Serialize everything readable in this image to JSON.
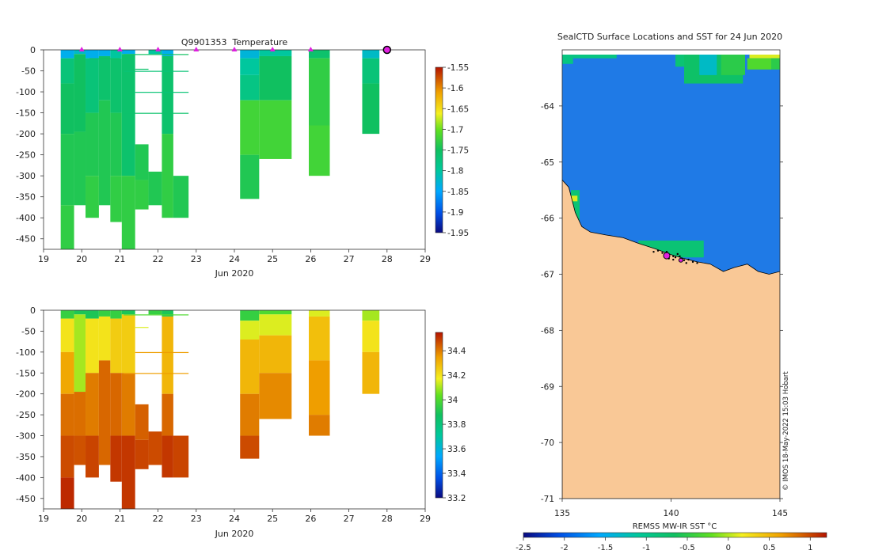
{
  "chart_data": [
    {
      "id": "temperature-section",
      "type": "heatmap",
      "title": "Q9901353  Temperature",
      "xlabel": "Jun 2020",
      "ylabel": "",
      "xlim": [
        19,
        29
      ],
      "ylim": [
        -475,
        0
      ],
      "x_ticks": [
        19,
        20,
        21,
        22,
        23,
        24,
        25,
        26,
        27,
        28,
        29
      ],
      "y_ticks": [
        0,
        -50,
        -100,
        -150,
        -200,
        -250,
        -300,
        -350,
        -400,
        -450
      ],
      "colorbar": {
        "min": -1.95,
        "max": -1.55,
        "ticks": [
          -1.55,
          -1.6,
          -1.65,
          -1.7,
          -1.75,
          -1.8,
          -1.85,
          -1.9,
          -1.95
        ]
      },
      "profile_markers_x": [
        20,
        21,
        22,
        23,
        24,
        25,
        26
      ],
      "current_marker": {
        "x": 28,
        "depth": 0
      },
      "profiles": [
        {
          "x0": 19.45,
          "x1": 19.8,
          "segments": [
            [
              0,
              20,
              -1.84
            ],
            [
              20,
              80,
              -1.77
            ],
            [
              80,
              200,
              -1.75
            ],
            [
              200,
              370,
              -1.74
            ],
            [
              370,
              475,
              -1.73
            ]
          ]
        },
        {
          "x0": 19.8,
          "x1": 20.1,
          "segments": [
            [
              0,
              10,
              -1.82
            ],
            [
              10,
              195,
              -1.75
            ]
          ]
        },
        {
          "x0": 19.8,
          "x1": 20.1,
          "segments": [
            [
              195,
              370,
              -1.74
            ]
          ]
        },
        {
          "x0": 20.1,
          "x1": 20.45,
          "segments": [
            [
              0,
              20,
              -1.84
            ],
            [
              20,
              150,
              -1.77
            ],
            [
              150,
              300,
              -1.74
            ],
            [
              300,
              400,
              -1.73
            ]
          ]
        },
        {
          "x0": 20.45,
          "x1": 20.75,
          "segments": [
            [
              0,
              15,
              -1.84
            ],
            [
              15,
              120,
              -1.76
            ],
            [
              120,
              370,
              -1.74
            ]
          ]
        },
        {
          "x0": 20.75,
          "x1": 21.05,
          "segments": [
            [
              0,
              20,
              -1.8
            ],
            [
              20,
              150,
              -1.76
            ],
            [
              150,
              300,
              -1.74
            ],
            [
              300,
              410,
              -1.73
            ]
          ]
        },
        {
          "x0": 21.05,
          "x1": 21.4,
          "segments": [
            [
              0,
              10,
              -1.84
            ],
            [
              10,
              300,
              -1.76
            ],
            [
              300,
              475,
              -1.73
            ]
          ]
        },
        {
          "x0": 21.4,
          "x1": 21.75,
          "segments": [
            [
              225,
              310,
              -1.74
            ],
            [
              310,
              380,
              -1.73
            ]
          ]
        },
        {
          "x0": 21.75,
          "x1": 22.1,
          "segments": [
            [
              0,
              10,
              -1.8
            ],
            [
              290,
              370,
              -1.74
            ]
          ]
        },
        {
          "x0": 22.1,
          "x1": 22.4,
          "segments": [
            [
              0,
              15,
              -1.84
            ],
            [
              15,
              200,
              -1.76
            ],
            [
              200,
              400,
              -1.73
            ]
          ]
        },
        {
          "x0": 22.4,
          "x1": 22.8,
          "segments": [
            [
              300,
              400,
              -1.74
            ]
          ]
        },
        {
          "x0": 24.15,
          "x1": 24.65,
          "segments": [
            [
              0,
              20,
              -1.83
            ],
            [
              20,
              60,
              -1.8
            ],
            [
              60,
              120,
              -1.78
            ],
            [
              120,
              250,
              -1.72
            ],
            [
              250,
              355,
              -1.74
            ]
          ]
        },
        {
          "x0": 24.65,
          "x1": 25.5,
          "segments": [
            [
              0,
              15,
              -1.8
            ],
            [
              15,
              120,
              -1.75
            ],
            [
              120,
              260,
              -1.72
            ]
          ]
        },
        {
          "x0": 25.95,
          "x1": 26.5,
          "segments": [
            [
              0,
              20,
              -1.76
            ],
            [
              20,
              180,
              -1.73
            ],
            [
              180,
              300,
              -1.72
            ]
          ]
        },
        {
          "x0": 27.35,
          "x1": 27.8,
          "segments": [
            [
              0,
              20,
              -1.82
            ],
            [
              20,
              80,
              -1.77
            ],
            [
              80,
              200,
              -1.75
            ]
          ]
        }
      ],
      "thin_lines": [
        {
          "x0": 20.2,
          "x1": 21.0,
          "depth": 20,
          "value": -1.75
        },
        {
          "x0": 21.1,
          "x1": 22.8,
          "depth": 10,
          "value": -1.75
        },
        {
          "x0": 21.1,
          "x1": 22.8,
          "depth": 50,
          "value": -1.77
        },
        {
          "x0": 21.4,
          "x1": 21.75,
          "depth": 45,
          "value": -1.76
        },
        {
          "x0": 21.4,
          "x1": 22.8,
          "depth": 100,
          "value": -1.77
        },
        {
          "x0": 21.1,
          "x1": 22.8,
          "depth": 150,
          "value": -1.76
        }
      ]
    },
    {
      "id": "salinity-section",
      "type": "heatmap",
      "title": "",
      "xlabel": "Jun 2020",
      "ylabel": "",
      "xlim": [
        19,
        29
      ],
      "ylim": [
        -475,
        0
      ],
      "x_ticks": [
        19,
        20,
        21,
        22,
        23,
        24,
        25,
        26,
        27,
        28,
        29
      ],
      "y_ticks": [
        0,
        -50,
        -100,
        -150,
        -200,
        -250,
        -300,
        -350,
        -400,
        -450
      ],
      "colorbar": {
        "min": 33.2,
        "max": 34.55,
        "ticks": [
          34.4,
          34.2,
          34,
          33.8,
          33.6,
          33.4,
          33.2
        ]
      },
      "profiles": [
        {
          "x0": 19.45,
          "x1": 19.8,
          "segments": [
            [
              0,
              20,
              33.95
            ],
            [
              20,
              100,
              34.2
            ],
            [
              100,
              200,
              34.33
            ],
            [
              200,
              300,
              34.42
            ],
            [
              300,
              400,
              34.47
            ],
            [
              400,
              475,
              34.52
            ]
          ]
        },
        {
          "x0": 19.8,
          "x1": 20.1,
          "segments": [
            [
              0,
              10,
              33.9
            ],
            [
              10,
              195,
              34.1
            ]
          ]
        },
        {
          "x0": 19.8,
          "x1": 20.1,
          "segments": [
            [
              195,
              300,
              34.42
            ],
            [
              300,
              370,
              34.46
            ]
          ]
        },
        {
          "x0": 20.1,
          "x1": 20.45,
          "segments": [
            [
              0,
              20,
              33.9
            ],
            [
              20,
              150,
              34.2
            ],
            [
              150,
              300,
              34.4
            ],
            [
              300,
              400,
              34.48
            ]
          ]
        },
        {
          "x0": 20.45,
          "x1": 20.75,
          "segments": [
            [
              0,
              15,
              33.95
            ],
            [
              15,
              120,
              34.2
            ],
            [
              120,
              370,
              34.43
            ]
          ]
        },
        {
          "x0": 20.75,
          "x1": 21.05,
          "segments": [
            [
              0,
              20,
              33.95
            ],
            [
              20,
              150,
              34.25
            ],
            [
              150,
              300,
              34.43
            ],
            [
              300,
              410,
              34.5
            ]
          ]
        },
        {
          "x0": 21.05,
          "x1": 21.4,
          "segments": [
            [
              0,
              10,
              33.9
            ],
            [
              10,
              150,
              34.25
            ],
            [
              150,
              300,
              34.4
            ],
            [
              300,
              475,
              34.5
            ]
          ]
        },
        {
          "x0": 21.4,
          "x1": 21.75,
          "segments": [
            [
              225,
              310,
              34.44
            ],
            [
              310,
              380,
              34.48
            ]
          ]
        },
        {
          "x0": 21.75,
          "x1": 22.1,
          "segments": [
            [
              0,
              10,
              33.95
            ],
            [
              290,
              370,
              34.47
            ]
          ]
        },
        {
          "x0": 22.1,
          "x1": 22.4,
          "segments": [
            [
              0,
              15,
              33.9
            ],
            [
              15,
              200,
              34.3
            ],
            [
              200,
              300,
              34.43
            ],
            [
              300,
              400,
              34.5
            ]
          ]
        },
        {
          "x0": 22.4,
          "x1": 22.8,
          "segments": [
            [
              300,
              400,
              34.48
            ]
          ]
        },
        {
          "x0": 24.15,
          "x1": 24.65,
          "segments": [
            [
              0,
              25,
              33.95
            ],
            [
              25,
              70,
              34.15
            ],
            [
              70,
              200,
              34.3
            ],
            [
              200,
              300,
              34.4
            ],
            [
              300,
              355,
              34.47
            ]
          ]
        },
        {
          "x0": 24.65,
          "x1": 25.5,
          "segments": [
            [
              0,
              10,
              34.0
            ],
            [
              10,
              60,
              34.15
            ],
            [
              60,
              150,
              34.3
            ],
            [
              150,
              260,
              34.38
            ]
          ]
        },
        {
          "x0": 25.95,
          "x1": 26.5,
          "segments": [
            [
              0,
              15,
              34.15
            ],
            [
              15,
              120,
              34.28
            ],
            [
              120,
              250,
              34.35
            ],
            [
              250,
              300,
              34.4
            ]
          ]
        },
        {
          "x0": 27.35,
          "x1": 27.8,
          "segments": [
            [
              0,
              25,
              34.1
            ],
            [
              25,
              100,
              34.2
            ],
            [
              100,
              200,
              34.3
            ]
          ]
        }
      ],
      "thin_lines": [
        {
          "x0": 21.4,
          "x1": 21.75,
          "depth": 40,
          "value": 34.15
        },
        {
          "x0": 21.4,
          "x1": 22.8,
          "depth": 100,
          "value": 34.35
        },
        {
          "x0": 21.1,
          "x1": 22.8,
          "depth": 150,
          "value": 34.35
        },
        {
          "x0": 21.1,
          "x1": 22.8,
          "depth": 10,
          "value": 34.0
        }
      ]
    },
    {
      "id": "sst-map",
      "type": "heatmap",
      "title": "SealCTD Surface Locations and SST for 24 Jun 2020",
      "xlabel": "",
      "ylabel": "",
      "xlim": [
        135,
        145
      ],
      "ylim": [
        -71,
        -63
      ],
      "x_ticks": [
        135,
        140,
        145
      ],
      "y_ticks": [
        -64,
        -65,
        -66,
        -67,
        -68,
        -69,
        -70,
        -71
      ],
      "colorbar": {
        "label": "REMSS MW-IR SST °C",
        "min": -2.5,
        "max": 1.2,
        "ticks": [
          -2.5,
          -2,
          -1.5,
          -1,
          -0.5,
          0,
          0.5,
          1
        ]
      },
      "coastline_lonlat": [
        [
          135,
          -65.32
        ],
        [
          135.3,
          -65.45
        ],
        [
          135.6,
          -65.9
        ],
        [
          135.9,
          -66.15
        ],
        [
          136.3,
          -66.25
        ],
        [
          137.0,
          -66.3
        ],
        [
          137.8,
          -66.35
        ],
        [
          138.5,
          -66.45
        ],
        [
          139.3,
          -66.55
        ],
        [
          140.0,
          -66.65
        ],
        [
          140.6,
          -66.72
        ],
        [
          141.2,
          -66.78
        ],
        [
          141.8,
          -66.82
        ],
        [
          142.4,
          -66.95
        ],
        [
          142.9,
          -66.88
        ],
        [
          143.5,
          -66.82
        ],
        [
          144.0,
          -66.95
        ],
        [
          144.5,
          -67.0
        ],
        [
          145,
          -66.95
        ]
      ],
      "sst_patches": [
        {
          "lon0": 135.0,
          "lon1": 135.5,
          "lat0": -63.25,
          "lat1": -63.0,
          "value": -0.9
        },
        {
          "lon0": 135.5,
          "lon1": 137.5,
          "lat0": -63.15,
          "lat1": -63.0,
          "value": -0.9
        },
        {
          "lon0": 140.2,
          "lon1": 141.2,
          "lat0": -63.3,
          "lat1": -63.0,
          "value": -0.8
        },
        {
          "lon0": 140.6,
          "lon1": 143.3,
          "lat0": -63.6,
          "lat1": -63.0,
          "value": -0.7
        },
        {
          "lon0": 141.3,
          "lon1": 142.1,
          "lat0": -63.45,
          "lat1": -63.0,
          "value": -1.3
        },
        {
          "lon0": 142.3,
          "lon1": 143.4,
          "lat0": -63.45,
          "lat1": -63.0,
          "value": -0.5
        },
        {
          "lon0": 143.6,
          "lon1": 145.0,
          "lat0": -63.15,
          "lat1": -63.0,
          "value": 0.1
        },
        {
          "lon0": 143.5,
          "lon1": 144.6,
          "lat0": -63.35,
          "lat1": -63.15,
          "value": -0.3
        },
        {
          "lon0": 144.6,
          "lon1": 145.0,
          "lat0": -63.35,
          "lat1": -63.15,
          "value": -0.5
        },
        {
          "lon0": 135.4,
          "lon1": 135.8,
          "lat0": -66.1,
          "lat1": -65.5,
          "value": -0.8
        },
        {
          "lon0": 135.4,
          "lon1": 135.7,
          "lat0": -65.7,
          "lat1": -65.6,
          "value": 0.1
        },
        {
          "lon0": 138.5,
          "lon1": 141.5,
          "lat0": -66.7,
          "lat1": -66.4,
          "value": -0.8
        }
      ],
      "track_points": [
        [
          139.4,
          -66.58
        ],
        [
          139.6,
          -66.62
        ],
        [
          139.8,
          -66.6
        ],
        [
          139.9,
          -66.66
        ],
        [
          140.1,
          -66.68
        ],
        [
          140.2,
          -66.7
        ],
        [
          140.3,
          -66.64
        ],
        [
          140.5,
          -66.72
        ],
        [
          140.6,
          -66.75
        ],
        [
          140.8,
          -66.74
        ],
        [
          141.0,
          -66.78
        ],
        [
          139.9,
          -66.72
        ],
        [
          140.1,
          -66.74
        ],
        [
          140.4,
          -66.68
        ],
        [
          139.7,
          -66.68
        ],
        [
          139.2,
          -66.6
        ],
        [
          140.7,
          -66.8
        ],
        [
          141.2,
          -66.8
        ]
      ],
      "highlight_points": [
        [
          139.8,
          -66.67
        ],
        [
          140.45,
          -66.75
        ]
      ],
      "watermark": "© IMOS 18-May-2022 15:03 Hobart"
    }
  ]
}
